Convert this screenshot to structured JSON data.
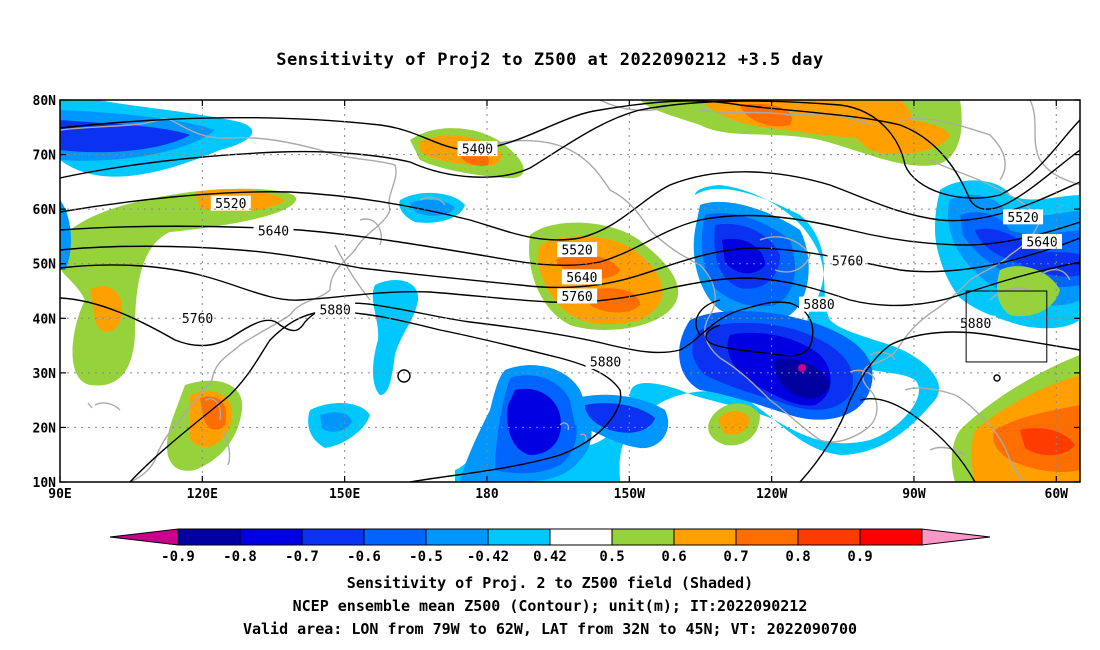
{
  "title": "Sensitivity of Proj2 to Z500 at 2022090212 +3.5 day",
  "captions": [
    "Sensitivity of Proj. 2 to Z500 field (Shaded)",
    "NCEP ensemble mean Z500 (Contour); unit(m); IT:2022090212",
    "Valid area: LON from 79W to 62W, LAT from 32N to 45N; VT: 2022090700"
  ],
  "map": {
    "lon_range": [
      90,
      305
    ],
    "lat_range": [
      10,
      80
    ],
    "lat_ticks": [
      {
        "lat": 80,
        "label": "80N"
      },
      {
        "lat": 70,
        "label": "70N"
      },
      {
        "lat": 60,
        "label": "60N"
      },
      {
        "lat": 50,
        "label": "50N"
      },
      {
        "lat": 40,
        "label": "40N"
      },
      {
        "lat": 30,
        "label": "30N"
      },
      {
        "lat": 20,
        "label": "20N"
      },
      {
        "lat": 10,
        "label": "10N"
      }
    ],
    "lon_ticks": [
      {
        "lon": 90,
        "label": "90E"
      },
      {
        "lon": 120,
        "label": "120E"
      },
      {
        "lon": 150,
        "label": "150E"
      },
      {
        "lon": 180,
        "label": "180"
      },
      {
        "lon": 210,
        "label": "150W"
      },
      {
        "lon": 240,
        "label": "120W"
      },
      {
        "lon": 270,
        "label": "90W"
      },
      {
        "lon": 300,
        "label": "60W"
      }
    ],
    "valid_area": {
      "lon": [
        281,
        298
      ],
      "lat": [
        32,
        45
      ]
    },
    "contour_labels": [
      {
        "text": "5400",
        "lon": 178,
        "lat": 71
      },
      {
        "text": "5520",
        "lon": 126,
        "lat": 61
      },
      {
        "text": "5640",
        "lon": 135,
        "lat": 56
      },
      {
        "text": "5760",
        "lon": 119,
        "lat": 40
      },
      {
        "text": "5880",
        "lon": 148,
        "lat": 41.5
      },
      {
        "text": "5520",
        "lon": 199,
        "lat": 52.5
      },
      {
        "text": "5640",
        "lon": 200,
        "lat": 47.5
      },
      {
        "text": "5760",
        "lon": 199,
        "lat": 44
      },
      {
        "text": "5880",
        "lon": 205,
        "lat": 32
      },
      {
        "text": "5880",
        "lon": 250,
        "lat": 42.5
      },
      {
        "text": "5760",
        "lon": 256,
        "lat": 50.5
      },
      {
        "text": "5520",
        "lon": 293,
        "lat": 58.5
      },
      {
        "text": "5640",
        "lon": 297,
        "lat": 54
      },
      {
        "text": "5880",
        "lon": 283,
        "lat": 39
      }
    ]
  },
  "colorbar": {
    "labels": [
      "-0.9",
      "-0.8",
      "-0.7",
      "-0.6",
      "-0.5",
      "-0.42",
      "0.42",
      "0.5",
      "0.6",
      "0.7",
      "0.8",
      "0.9"
    ],
    "colors": [
      "#0000a0",
      "#0000e0",
      "#0a32f0",
      "#0064ff",
      "#0096ff",
      "#00c8ff",
      "#ffffff",
      "#96d23c",
      "#ffa000",
      "#ff6e00",
      "#ff3c00",
      "#ff0000"
    ],
    "low_color": "#c8008c",
    "high_color": "#ff96c8"
  }
}
